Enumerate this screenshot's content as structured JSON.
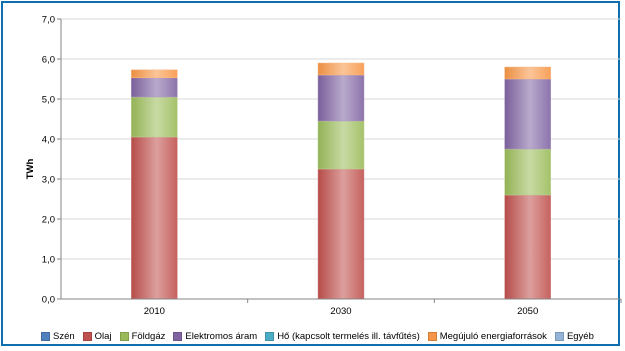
{
  "chart_data": {
    "type": "bar",
    "stacked": true,
    "categories": [
      "2010",
      "2030",
      "2050"
    ],
    "series": [
      {
        "name": "Szén",
        "color": "#4f81bd",
        "values": [
          0.0,
          0.0,
          0.0
        ]
      },
      {
        "name": "Olaj",
        "color": "#c0504d",
        "values": [
          4.05,
          3.25,
          2.6
        ]
      },
      {
        "name": "Földgáz",
        "color": "#9bbb59",
        "values": [
          1.0,
          1.2,
          1.15
        ]
      },
      {
        "name": "Elektromos áram",
        "color": "#8064a2",
        "values": [
          0.48,
          1.15,
          1.75
        ]
      },
      {
        "name": "Hő (kapcsolt termelés ill. távfűtés)",
        "color": "#4bacc6",
        "values": [
          0.0,
          0.0,
          0.0
        ]
      },
      {
        "name": "Megújuló energiaforrások",
        "color": "#f79646",
        "values": [
          0.2,
          0.3,
          0.3
        ]
      },
      {
        "name": "Egyéb",
        "color": "#95b3d7",
        "values": [
          0.0,
          0.0,
          0.0
        ]
      }
    ],
    "ylabel": "TWh",
    "ylim": [
      0,
      7
    ],
    "yticks": [
      "0,0",
      "1,0",
      "2,0",
      "3,0",
      "4,0",
      "5,0",
      "6,0",
      "7,0"
    ],
    "grid": true,
    "legend_position": "bottom"
  }
}
